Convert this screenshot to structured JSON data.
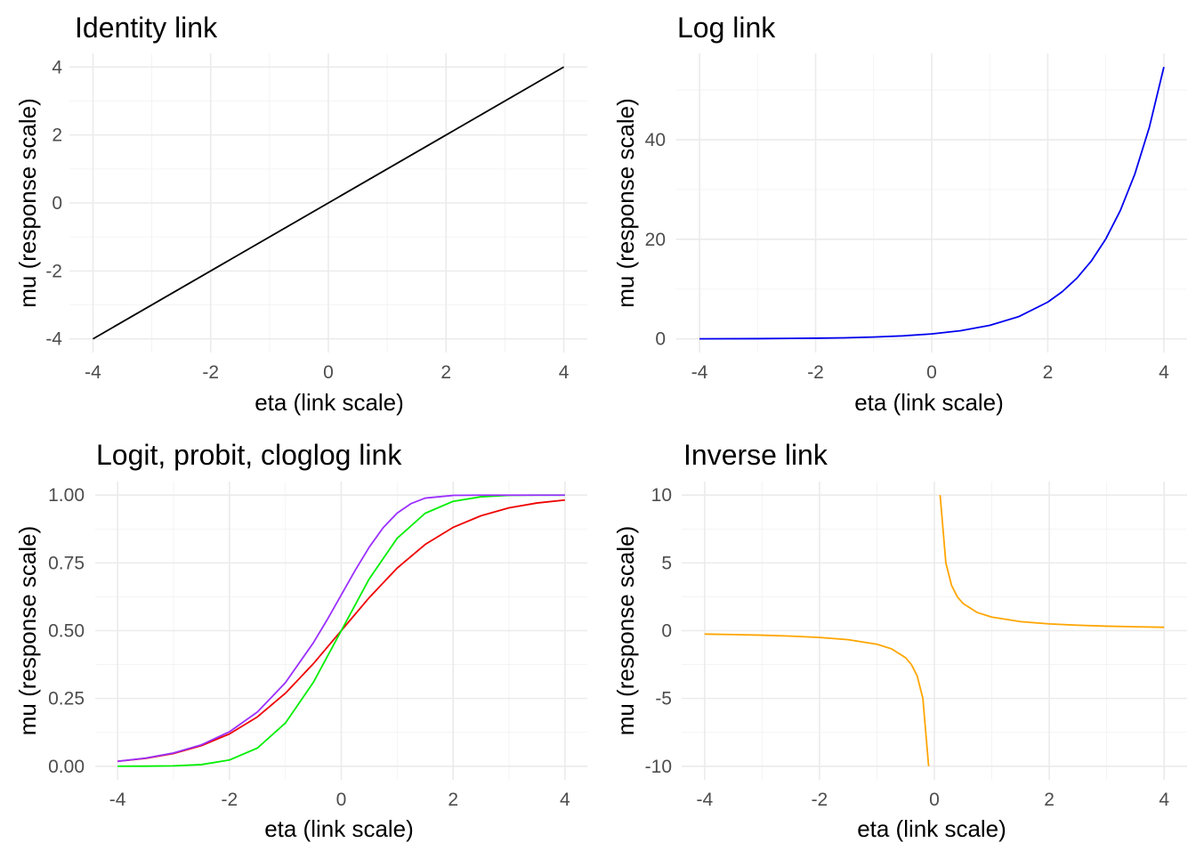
{
  "chart_data": [
    {
      "type": "line",
      "title": "Identity link",
      "xlabel": "eta (link scale)",
      "ylabel": "mu (response scale)",
      "xlim": [
        -4,
        4
      ],
      "ylim": [
        -4,
        4
      ],
      "xticks": [
        -4,
        -2,
        0,
        2,
        4
      ],
      "yticks": [
        -4,
        -2,
        0,
        2,
        4
      ],
      "x_tick_labels": [
        "-4",
        "-2",
        "0",
        "2",
        "4"
      ],
      "y_tick_labels": [
        "-4",
        "-2",
        "0",
        "2",
        "4"
      ],
      "grid": true,
      "series": [
        {
          "color": "#000000",
          "x": [
            -4,
            4
          ],
          "y": [
            -4,
            4
          ]
        }
      ]
    },
    {
      "type": "line",
      "title": "Log link",
      "xlabel": "eta (link scale)",
      "ylabel": "mu (response scale)",
      "xlim": [
        -4,
        4
      ],
      "ylim": [
        0,
        54.6
      ],
      "xticks": [
        -4,
        -2,
        0,
        2,
        4
      ],
      "yticks": [
        0,
        20,
        40
      ],
      "x_tick_labels": [
        "-4",
        "-2",
        "0",
        "2",
        "4"
      ],
      "y_tick_labels": [
        "0",
        "20",
        "40"
      ],
      "grid": true,
      "series": [
        {
          "color": "#0000ee",
          "x": [
            -4,
            -3,
            -2,
            -1.5,
            -1,
            -0.5,
            0,
            0.5,
            1,
            1.5,
            2,
            2.25,
            2.5,
            2.75,
            3,
            3.25,
            3.5,
            3.75,
            4
          ],
          "y": [
            0.02,
            0.05,
            0.14,
            0.22,
            0.37,
            0.61,
            1.0,
            1.65,
            2.72,
            4.48,
            7.39,
            9.49,
            12.18,
            15.64,
            20.09,
            25.79,
            33.12,
            42.52,
            54.6
          ]
        }
      ]
    },
    {
      "type": "line",
      "title": "Logit, probit, cloglog link",
      "xlabel": "eta (link scale)",
      "ylabel": "mu (response scale)",
      "xlim": [
        -4,
        4
      ],
      "ylim": [
        0,
        1
      ],
      "xticks": [
        -4,
        -2,
        0,
        2,
        4
      ],
      "yticks": [
        0,
        0.25,
        0.5,
        0.75,
        1
      ],
      "x_tick_labels": [
        "-4",
        "-2",
        "0",
        "2",
        "4"
      ],
      "y_tick_labels": [
        "0.00",
        "0.25",
        "0.50",
        "0.75",
        "1.00"
      ],
      "grid": true,
      "series": [
        {
          "color": "#ee0000",
          "x": [
            -4,
            -3.5,
            -3,
            -2.5,
            -2,
            -1.5,
            -1,
            -0.5,
            0,
            0.5,
            1,
            1.5,
            2,
            2.5,
            3,
            3.5,
            4
          ],
          "y": [
            0.018,
            0.029,
            0.047,
            0.076,
            0.119,
            0.182,
            0.269,
            0.378,
            0.5,
            0.622,
            0.731,
            0.818,
            0.881,
            0.924,
            0.953,
            0.971,
            0.982
          ]
        },
        {
          "color": "#00ee00",
          "x": [
            -4,
            -3.5,
            -3,
            -2.5,
            -2,
            -1.5,
            -1,
            -0.5,
            0,
            0.5,
            1,
            1.5,
            2,
            2.5,
            3,
            3.5,
            4
          ],
          "y": [
            0.0,
            0.0002,
            0.0013,
            0.006,
            0.023,
            0.067,
            0.159,
            0.309,
            0.5,
            0.691,
            0.841,
            0.933,
            0.977,
            0.994,
            0.999,
            1.0,
            1.0
          ]
        },
        {
          "color": "#9b30ff",
          "x": [
            -4,
            -3.5,
            -3,
            -2.5,
            -2,
            -1.5,
            -1,
            -0.5,
            -0.25,
            0,
            0.25,
            0.5,
            0.75,
            1,
            1.25,
            1.5,
            2,
            2.5,
            3,
            4
          ],
          "y": [
            0.018,
            0.03,
            0.049,
            0.079,
            0.127,
            0.2,
            0.308,
            0.455,
            0.541,
            0.632,
            0.723,
            0.808,
            0.88,
            0.934,
            0.969,
            0.989,
            0.999,
            1.0,
            1.0,
            1.0
          ]
        }
      ]
    },
    {
      "type": "line",
      "title": "Inverse link",
      "xlabel": "eta (link scale)",
      "ylabel": "mu (response scale)",
      "xlim": [
        -4,
        4
      ],
      "ylim": [
        -10,
        10
      ],
      "xticks": [
        -4,
        -2,
        0,
        2,
        4
      ],
      "yticks": [
        -10,
        -5,
        0,
        5,
        10
      ],
      "x_tick_labels": [
        "-4",
        "-2",
        "0",
        "2",
        "4"
      ],
      "y_tick_labels": [
        "-10",
        "-5",
        "0",
        "5",
        "10"
      ],
      "grid": true,
      "series": [
        {
          "color": "#ffa500",
          "x": [
            -4,
            -3.5,
            -3,
            -2.5,
            -2,
            -1.5,
            -1,
            -0.75,
            -0.5,
            -0.4,
            -0.3,
            -0.2,
            -0.1
          ],
          "y": [
            -0.25,
            -0.286,
            -0.333,
            -0.4,
            -0.5,
            -0.667,
            -1.0,
            -1.333,
            -2.0,
            -2.5,
            -3.333,
            -5.0,
            -10.0
          ]
        },
        {
          "color": "#ffa500",
          "x": [
            0.1,
            0.2,
            0.3,
            0.4,
            0.5,
            0.75,
            1,
            1.5,
            2,
            2.5,
            3,
            3.5,
            4
          ],
          "y": [
            10.0,
            5.0,
            3.333,
            2.5,
            2.0,
            1.333,
            1.0,
            0.667,
            0.5,
            0.4,
            0.333,
            0.286,
            0.25
          ]
        }
      ]
    }
  ]
}
